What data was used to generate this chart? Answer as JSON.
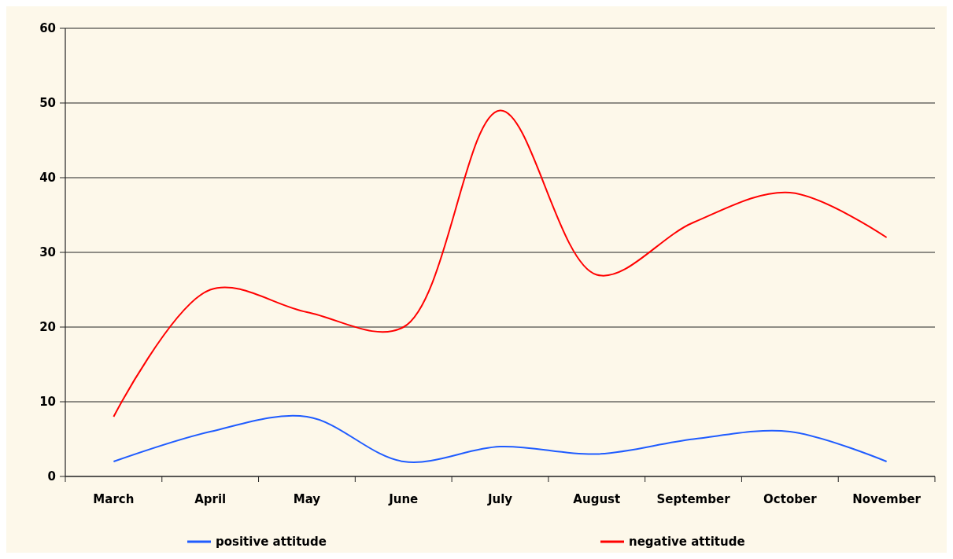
{
  "chart_data": {
    "type": "line",
    "categories": [
      "March",
      "April",
      "May",
      "June",
      "July",
      "August",
      "September",
      "October",
      "November"
    ],
    "series": [
      {
        "name": "positive attitude",
        "color": "#1f5cff",
        "values": [
          2,
          6,
          8,
          2,
          4,
          3,
          5,
          6,
          2
        ]
      },
      {
        "name": "negative attitude",
        "color": "#ff0000",
        "values": [
          8,
          25,
          22,
          20,
          49,
          27,
          34,
          38,
          32
        ]
      }
    ],
    "ylim": [
      0,
      60
    ],
    "yticks": [
      0,
      10,
      20,
      30,
      40,
      50,
      60
    ],
    "grid": "y",
    "legend": "bottom",
    "marker": "none",
    "line_style": "solid"
  }
}
